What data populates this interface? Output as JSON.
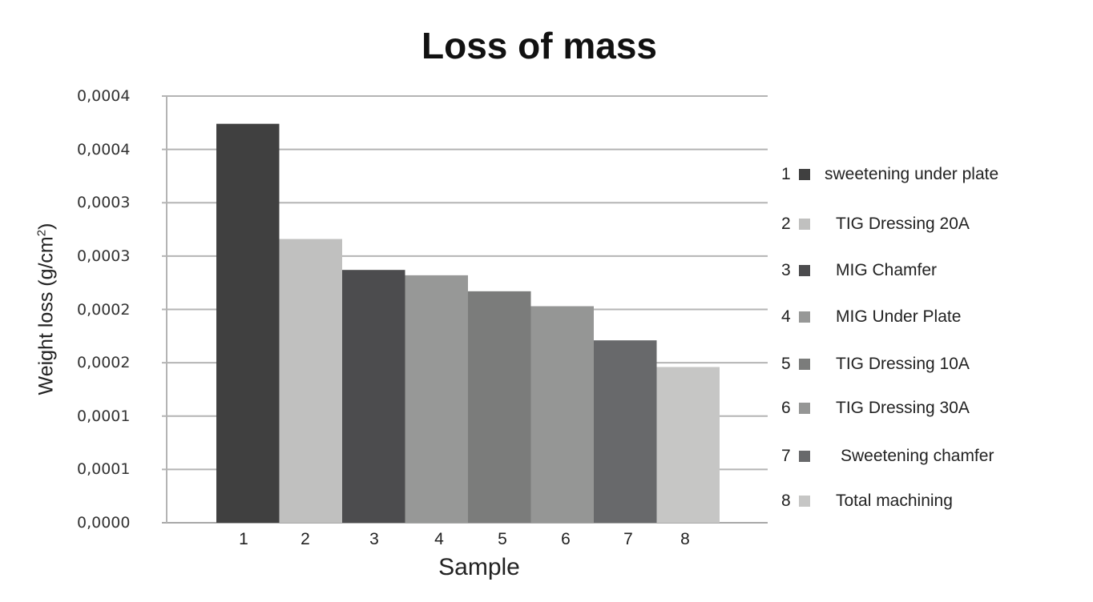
{
  "chart_data": {
    "type": "bar",
    "title": "Loss of mass",
    "xlabel": "Sample",
    "ylabel": "Weight loss (g/cm²)",
    "ylabel_base": "Weight loss (g/cm",
    "ylabel_sup": "2",
    "ylabel_tail": ")",
    "ylim": [
      0,
      0.0004
    ],
    "yticks": [
      0,
      5e-05,
      0.0001,
      0.00015,
      0.0002,
      0.00025,
      0.0003,
      0.00035,
      0.0004
    ],
    "ytick_labels": [
      "0,0000",
      "0,0001",
      "0,0001",
      "0,0002",
      "0,0002",
      "0,0003",
      "0,0003",
      "0,0004",
      "0,0004"
    ],
    "grid": true,
    "legend_position": "right",
    "categories": [
      "1",
      "2",
      "3",
      "4",
      "5",
      "6",
      "7",
      "8"
    ],
    "values": [
      0.000374,
      0.000266,
      0.000237,
      0.000232,
      0.000217,
      0.000203,
      0.000171,
      0.000146
    ],
    "colors": [
      "#404040",
      "#c0c0bf",
      "#4c4c4e",
      "#979897",
      "#7b7c7b",
      "#959695",
      "#68696b",
      "#c6c6c5"
    ],
    "legend": [
      {
        "num": "1",
        "label": "sweetening under plate",
        "color": "#404040"
      },
      {
        "num": "2",
        "label": "TIG Dressing 20A",
        "color": "#c0c0bf"
      },
      {
        "num": "3",
        "label": "MIG Chamfer",
        "color": "#4c4c4e"
      },
      {
        "num": "4",
        "label": "MIG Under Plate",
        "color": "#979897"
      },
      {
        "num": "5",
        "label": "TIG Dressing 10A",
        "color": "#7b7c7b"
      },
      {
        "num": "6",
        "label": "TIG Dressing 30A",
        "color": "#959695"
      },
      {
        "num": "7",
        "label": "Sweetening chamfer",
        "color": "#68696b"
      },
      {
        "num": "8",
        "label": "Total machining",
        "color": "#c6c6c5"
      }
    ]
  }
}
